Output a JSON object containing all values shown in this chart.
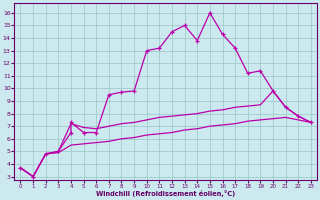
{
  "xlabel": "Windchill (Refroidissement éolien,°C)",
  "background_color": "#cde9f0",
  "grid_color": "#a0cccc",
  "line_color": "#bb00aa",
  "spine_color": "#660066",
  "x_ticks": [
    0,
    1,
    2,
    3,
    4,
    5,
    6,
    7,
    8,
    9,
    10,
    11,
    12,
    13,
    14,
    15,
    16,
    17,
    18,
    19,
    20,
    21,
    22,
    23
  ],
  "y_ticks": [
    3,
    4,
    5,
    6,
    7,
    8,
    9,
    10,
    11,
    12,
    13,
    14,
    15,
    16
  ],
  "ylim": [
    2.7,
    16.8
  ],
  "xlim": [
    -0.5,
    23.5
  ],
  "series1_x": [
    0,
    1,
    2,
    3,
    4,
    4,
    5,
    6,
    7,
    8,
    9,
    10,
    11,
    12,
    13,
    14,
    15,
    16,
    17,
    18,
    19,
    20,
    21,
    22,
    23
  ],
  "series1_y": [
    3.7,
    3.0,
    4.8,
    5.0,
    6.5,
    7.3,
    6.5,
    6.5,
    9.5,
    9.7,
    9.8,
    13.0,
    13.2,
    14.5,
    15.0,
    13.8,
    16.0,
    14.3,
    13.2,
    11.2,
    11.4,
    9.8,
    8.5,
    7.8,
    7.3
  ],
  "series2_x": [
    0,
    1,
    2,
    3,
    4,
    5,
    6,
    7,
    8,
    9,
    10,
    11,
    12,
    13,
    14,
    15,
    16,
    17,
    18,
    19,
    20,
    21,
    22,
    23
  ],
  "series2_y": [
    3.7,
    3.0,
    4.8,
    5.0,
    7.2,
    6.9,
    6.8,
    7.0,
    7.2,
    7.3,
    7.5,
    7.7,
    7.8,
    7.9,
    8.0,
    8.2,
    8.3,
    8.5,
    8.6,
    8.7,
    9.8,
    8.5,
    7.8,
    7.3
  ],
  "series3_x": [
    0,
    1,
    2,
    3,
    4,
    5,
    6,
    7,
    8,
    9,
    10,
    11,
    12,
    13,
    14,
    15,
    16,
    17,
    18,
    19,
    20,
    21,
    22,
    23
  ],
  "series3_y": [
    3.7,
    3.0,
    4.8,
    4.9,
    5.5,
    5.6,
    5.7,
    5.8,
    6.0,
    6.1,
    6.3,
    6.4,
    6.5,
    6.7,
    6.8,
    7.0,
    7.1,
    7.2,
    7.4,
    7.5,
    7.6,
    7.7,
    7.5,
    7.3
  ]
}
